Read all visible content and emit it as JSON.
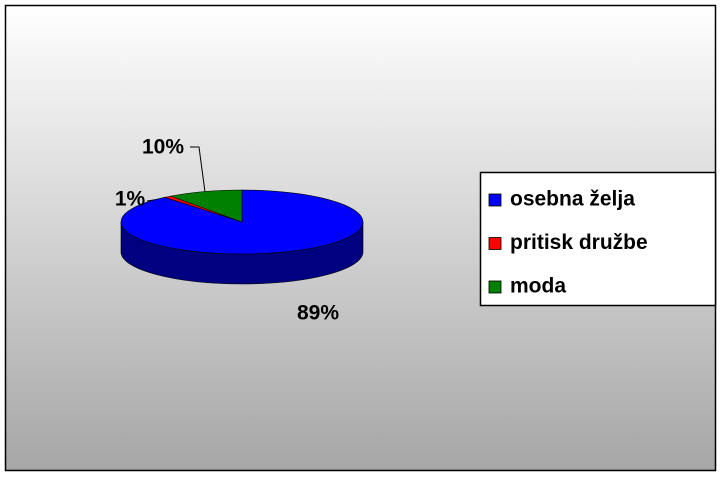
{
  "chart_data": {
    "type": "pie",
    "categories": [
      "osebna želja",
      "pritisk družbe",
      "moda"
    ],
    "values": [
      89,
      1,
      10
    ],
    "value_labels": [
      "89%",
      "1%",
      "10%"
    ],
    "colors": [
      "#0000ff",
      "#ff0000",
      "#008000"
    ],
    "legend": "right"
  }
}
